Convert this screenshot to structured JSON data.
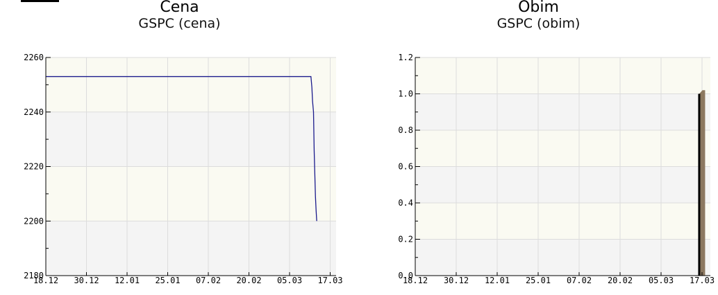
{
  "charts": [
    {
      "heading": "Cena",
      "subtitle": "GSPC (cena)",
      "chart_data": {
        "type": "line",
        "title": "GSPC (cena)",
        "x_tick_labels": [
          "18.12",
          "30.12",
          "12.01",
          "25.01",
          "07.02",
          "20.02",
          "05.03",
          "17.03"
        ],
        "y_tick_labels": [
          "2180",
          "2200",
          "2220",
          "2240",
          "2260"
        ],
        "ylim": [
          2180,
          2260
        ],
        "xlim": [
          0,
          90
        ],
        "grid": true,
        "color": "#1a1a8c",
        "series": [
          {
            "x": [
              0,
              82.2,
              82.5,
              82.7,
              83.0,
              83.2,
              83.6,
              83.8,
              84.0
            ],
            "y": [
              2253,
              2253,
              2249,
              2244,
              2240,
              2226,
              2209,
              2204,
              2200
            ]
          }
        ]
      }
    },
    {
      "heading": "Obim",
      "subtitle": "GSPC (obim)",
      "chart_data": {
        "type": "area",
        "title": "GSPC (obim)",
        "x_tick_labels": [
          "18.12",
          "30.12",
          "12.01",
          "25.01",
          "07.02",
          "20.02",
          "05.03",
          "17.03"
        ],
        "y_tick_labels": [
          "0.0",
          "0.2",
          "0.4",
          "0.6",
          "0.8",
          "1.0",
          "1.2"
        ],
        "ylim": [
          0,
          1.2
        ],
        "xlim": [
          0,
          90
        ],
        "grid": true,
        "fill_color": "#8c7860",
        "edge_color": "#000000",
        "series": [
          {
            "x": [
              86.6,
              87.6,
              88.4
            ],
            "y": [
              1.0,
              1.02,
              1.02
            ]
          }
        ]
      }
    }
  ]
}
